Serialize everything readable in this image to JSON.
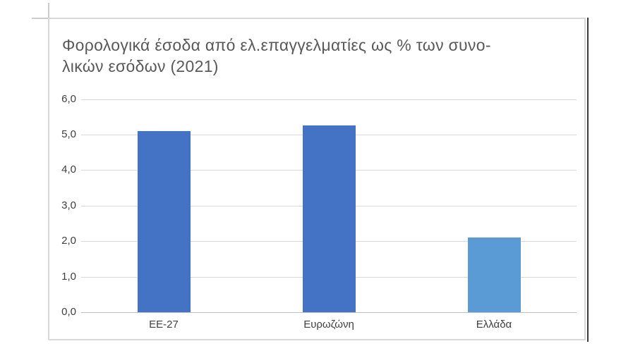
{
  "chart": {
    "title_lines": [
      "Φορολογικά έσοδα από ελ.επαγγελματίες ως % των συνο-",
      "λικών εσόδων (2021)"
    ]
  },
  "chart_data": {
    "type": "bar",
    "title": "Φορολογικά έσοδα από ελ.επαγγελματίες ως % των συνολικών εσόδων (2021)",
    "categories": [
      "EE-27",
      "Ευρωζώνη",
      "Ελλάδα"
    ],
    "values": [
      5.1,
      5.25,
      2.1
    ],
    "bar_colors": [
      "#4472C4",
      "#4472C4",
      "#5B9BD5"
    ],
    "y_ticks": [
      "0,0",
      "1,0",
      "2,0",
      "3,0",
      "4,0",
      "5,0",
      "6,0"
    ],
    "ylim": [
      0,
      6
    ],
    "xlabel": "",
    "ylabel": "",
    "grid": true,
    "legend": "none",
    "decimal_separator": ","
  },
  "colors": {
    "bar_primary": "#4472C4",
    "bar_highlight": "#5B9BD5",
    "gridline": "#D9D9D9",
    "axis_line": "#BFBFBF",
    "tick_text": "#404040",
    "title_text": "#595959",
    "chart_border": "#D8D8D8",
    "dark_edge": "#3B3B3B"
  }
}
